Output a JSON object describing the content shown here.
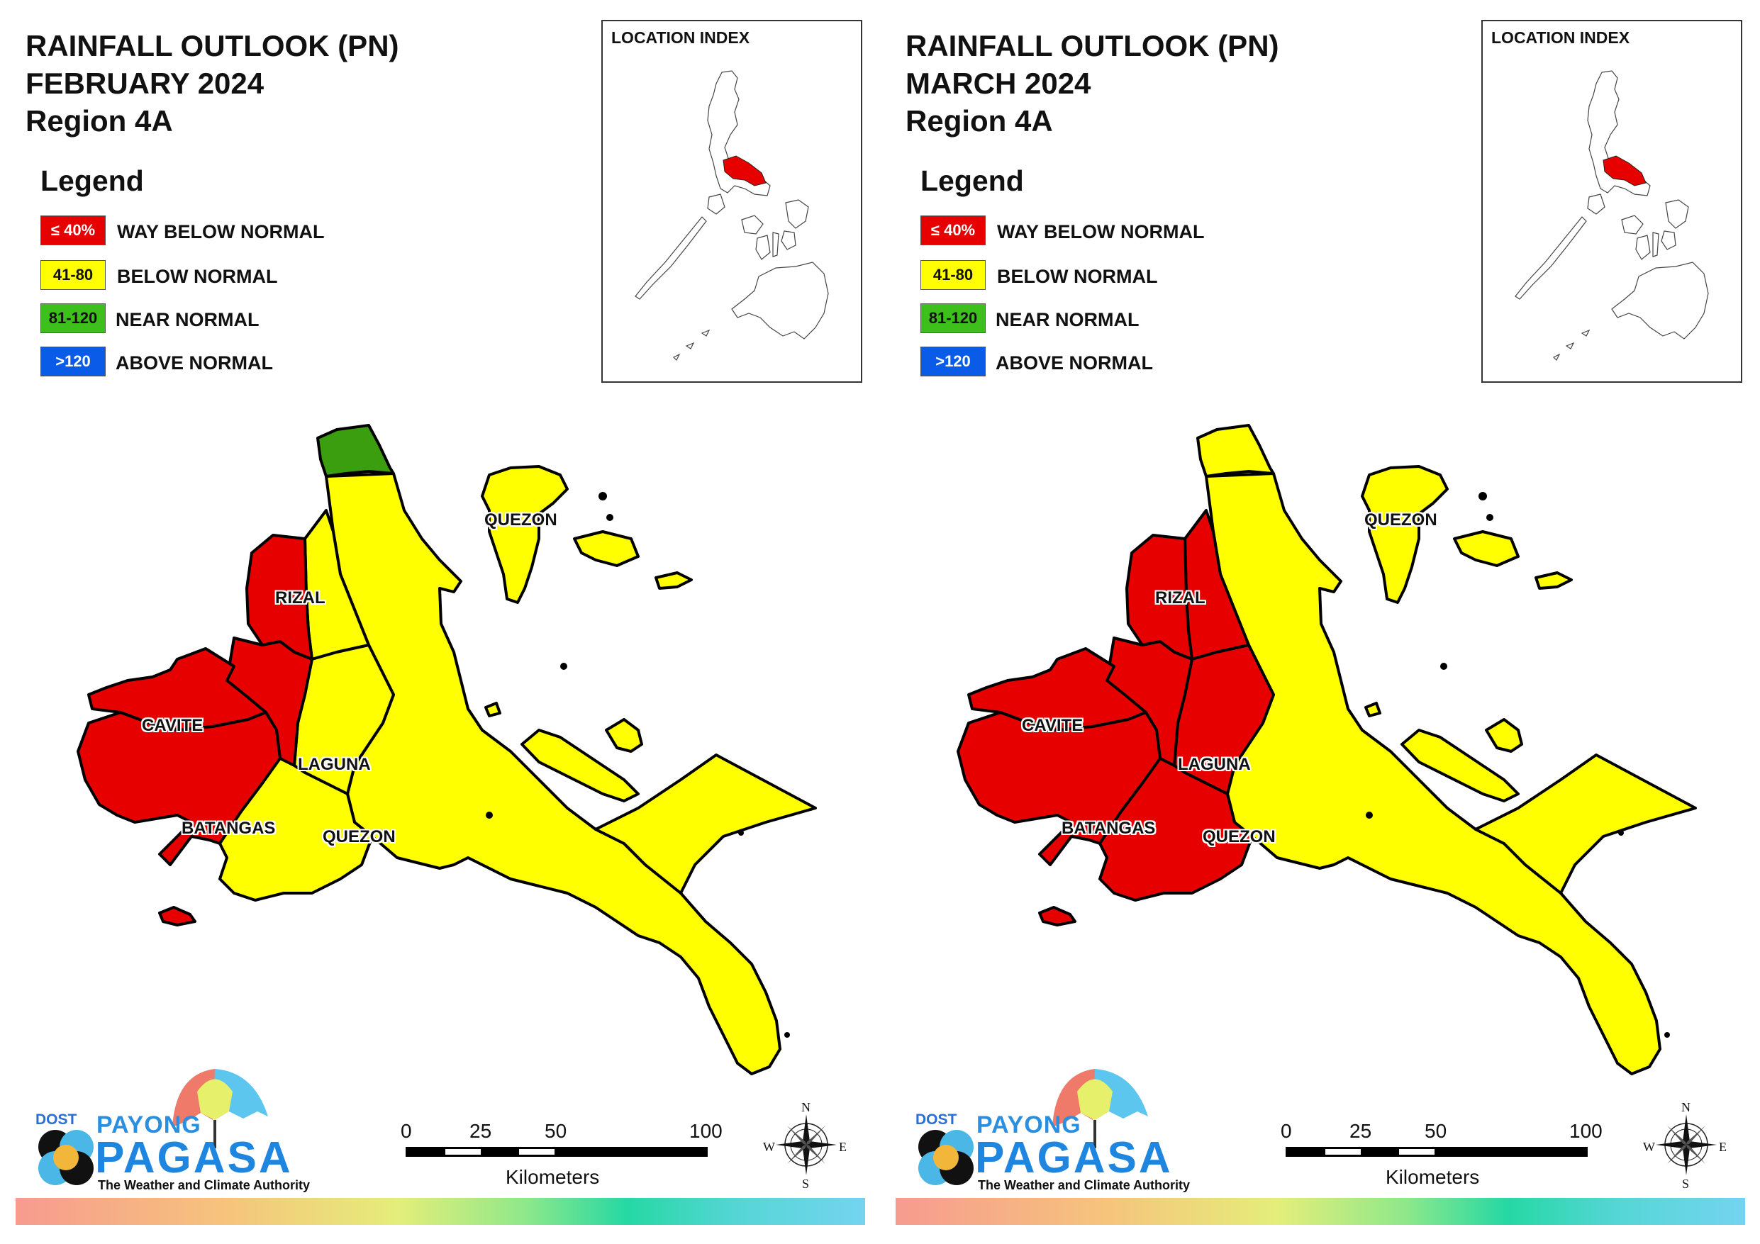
{
  "legend": {
    "title": "Legend",
    "items": [
      {
        "range": "≤ 40%",
        "label": "WAY BELOW NORMAL",
        "color": "#e60000",
        "text_color": "#ffffff"
      },
      {
        "range": "41-80",
        "label": "BELOW NORMAL",
        "color": "#ffff00",
        "text_color": "#111111"
      },
      {
        "range": "81-120",
        "label": "NEAR NORMAL",
        "color": "#3dbf1c",
        "text_color": "#111111"
      },
      {
        "range": ">120",
        "label": "ABOVE NORMAL",
        "color": "#0a5ce8",
        "text_color": "#ffffff"
      }
    ]
  },
  "location_index": {
    "title": "LOCATION INDEX",
    "highlight_color": "#e60000"
  },
  "scale": {
    "ticks": [
      "0",
      "25",
      "50",
      "100"
    ],
    "unit": "Kilometers"
  },
  "compass": {
    "n": "N",
    "s": "S",
    "e": "E",
    "w": "W"
  },
  "logo": {
    "dost": "DOST",
    "payong": "PAYONG",
    "pagasa": "PAGASA",
    "tagline": "The Weather and Climate Authority"
  },
  "colors": {
    "way_below": "#e60000",
    "below": "#ffff00",
    "near": "#3a9e0f",
    "above": "#0a5ce8"
  },
  "maps": [
    {
      "title_line1": "RAINFALL OUTLOOK (PN)",
      "title_line2": "FEBRUARY 2024",
      "title_line3": "Region 4A",
      "provinces": {
        "rizal": "RIZAL",
        "cavite": "CAVITE",
        "laguna": "LAGUNA",
        "batangas": "BATANGAS",
        "quezon_south": "QUEZON",
        "quezon_north": "QUEZON"
      },
      "classes": {
        "cavite": "way_below",
        "batangas_west": "way_below",
        "batangas_east": "below",
        "rizal_west": "way_below",
        "rizal_east": "below",
        "laguna_west": "way_below",
        "laguna_east": "below",
        "quezon_main": "below",
        "quezon_north_tip": "near",
        "quezon_islands": "below"
      }
    },
    {
      "title_line1": "RAINFALL OUTLOOK (PN)",
      "title_line2": "MARCH 2024",
      "title_line3": "Region 4A",
      "provinces": {
        "rizal": "RIZAL",
        "cavite": "CAVITE",
        "laguna": "LAGUNA",
        "batangas": "BATANGAS",
        "quezon_south": "QUEZON",
        "quezon_north": "QUEZON"
      },
      "classes": {
        "cavite": "way_below",
        "batangas_west": "way_below",
        "batangas_east": "way_below",
        "rizal_west": "way_below",
        "rizal_east": "way_below",
        "laguna_west": "way_below",
        "laguna_east": "way_below",
        "quezon_main": "below",
        "quezon_north_tip": "below",
        "quezon_islands": "below"
      }
    }
  ]
}
